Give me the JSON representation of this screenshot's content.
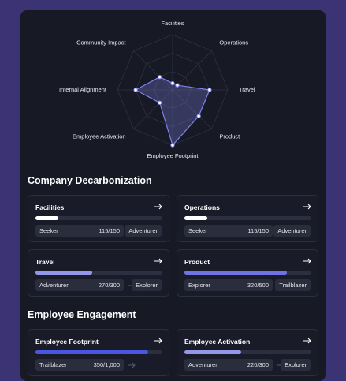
{
  "chart_data": {
    "type": "radar",
    "axes": [
      "Facilities",
      "Operations",
      "Travel",
      "Product",
      "Employee Footprint",
      "Employee Activation",
      "Internal Alignment",
      "Community Impact"
    ],
    "values": [
      12,
      12,
      67,
      67,
      100,
      33,
      67,
      33
    ],
    "rlim": [
      0,
      100
    ],
    "color": "#7d82e6"
  },
  "sections": [
    {
      "title": "Company Decarbonization",
      "cards": [
        {
          "title": "Facilities",
          "progress": 18,
          "level": "Seeker",
          "score": "115/150",
          "next": "Adventurer",
          "bar_color": "#ffffff"
        },
        {
          "title": "Operations",
          "progress": 18,
          "level": "Seeker",
          "score": "115/150",
          "next": "Adventurer",
          "bar_color": "#ffffff"
        },
        {
          "title": "Travel",
          "progress": 45,
          "level": "Adventurer",
          "score": "270/300",
          "next": "Explorer",
          "bar_color": "#9397ea"
        },
        {
          "title": "Product",
          "progress": 81,
          "level": "Explorer",
          "score": "320/500",
          "next": "Trailblazer",
          "bar_color": "#6f74e2"
        }
      ]
    },
    {
      "title": "Employee Engagement",
      "cards": [
        {
          "title": "Employee Footprint",
          "progress": 89,
          "level": "Trailblazer",
          "score": "350/1,000",
          "bar_color": "#4a56e2"
        },
        {
          "title": "Employee Activation",
          "progress": 45,
          "level": "Adventurer",
          "score": "220/300",
          "next": "Explorer",
          "bar_color": "#9397ea"
        }
      ]
    }
  ]
}
